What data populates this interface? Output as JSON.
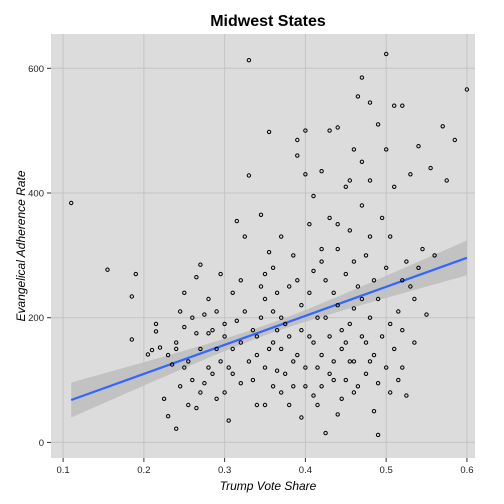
{
  "chart_data": {
    "type": "scatter",
    "title": "Midwest States",
    "xlabel": "Trump Vote Share",
    "ylabel": "Evangelical Adherence Rate",
    "xlim": [
      0.085,
      0.61
    ],
    "ylim": [
      -25,
      655
    ],
    "x_ticks": [
      0.1,
      0.2,
      0.3,
      0.4,
      0.5,
      0.6
    ],
    "x_tick_labels": [
      "0.1",
      "0.2",
      "0.3",
      "0.4",
      "0.5",
      "0.6"
    ],
    "y_ticks": [
      0,
      200,
      400,
      600
    ],
    "y_tick_labels": [
      "0",
      "200",
      "400",
      "600"
    ],
    "grid": true,
    "colors": {
      "panel": "#dcdcdc",
      "grid": "#c4c4c4",
      "fit_line": "#3366ff",
      "band": "#bdbdbd",
      "points": "#000000"
    },
    "fit": {
      "x0": 0.11,
      "y0": 68,
      "x1": 0.6,
      "y1": 296,
      "band_halfwidth_ends": 28,
      "band_halfwidth_mid": 8
    },
    "points": [
      [
        0.11,
        384
      ],
      [
        0.155,
        277
      ],
      [
        0.185,
        234
      ],
      [
        0.185,
        165
      ],
      [
        0.19,
        270
      ],
      [
        0.205,
        141
      ],
      [
        0.21,
        148
      ],
      [
        0.215,
        190
      ],
      [
        0.215,
        178
      ],
      [
        0.22,
        152
      ],
      [
        0.225,
        70
      ],
      [
        0.23,
        42
      ],
      [
        0.235,
        125
      ],
      [
        0.24,
        160
      ],
      [
        0.24,
        22
      ],
      [
        0.245,
        210
      ],
      [
        0.25,
        240
      ],
      [
        0.25,
        185
      ],
      [
        0.255,
        130
      ],
      [
        0.26,
        100
      ],
      [
        0.265,
        265
      ],
      [
        0.265,
        55
      ],
      [
        0.27,
        285
      ],
      [
        0.275,
        205
      ],
      [
        0.28,
        175
      ],
      [
        0.28,
        230
      ],
      [
        0.285,
        110
      ],
      [
        0.29,
        150
      ],
      [
        0.295,
        270
      ],
      [
        0.3,
        190
      ],
      [
        0.305,
        120
      ],
      [
        0.305,
        35
      ],
      [
        0.31,
        240
      ],
      [
        0.315,
        355
      ],
      [
        0.32,
        160
      ],
      [
        0.32,
        95
      ],
      [
        0.325,
        330
      ],
      [
        0.325,
        210
      ],
      [
        0.33,
        613
      ],
      [
        0.33,
        428
      ],
      [
        0.335,
        180
      ],
      [
        0.34,
        140
      ],
      [
        0.34,
        60
      ],
      [
        0.345,
        365
      ],
      [
        0.35,
        270
      ],
      [
        0.35,
        230
      ],
      [
        0.355,
        498
      ],
      [
        0.355,
        305
      ],
      [
        0.36,
        160
      ],
      [
        0.36,
        210
      ],
      [
        0.365,
        115
      ],
      [
        0.37,
        330
      ],
      [
        0.37,
        80
      ],
      [
        0.375,
        190
      ],
      [
        0.38,
        250
      ],
      [
        0.385,
        300
      ],
      [
        0.385,
        130
      ],
      [
        0.39,
        485
      ],
      [
        0.39,
        460
      ],
      [
        0.395,
        220
      ],
      [
        0.395,
        40
      ],
      [
        0.4,
        500
      ],
      [
        0.4,
        430
      ],
      [
        0.405,
        350
      ],
      [
        0.405,
        170
      ],
      [
        0.41,
        395
      ],
      [
        0.41,
        275
      ],
      [
        0.415,
        120
      ],
      [
        0.415,
        60
      ],
      [
        0.42,
        435
      ],
      [
        0.42,
        290
      ],
      [
        0.425,
        200
      ],
      [
        0.425,
        15
      ],
      [
        0.43,
        500
      ],
      [
        0.43,
        360
      ],
      [
        0.435,
        240
      ],
      [
        0.435,
        100
      ],
      [
        0.44,
        505
      ],
      [
        0.44,
        310
      ],
      [
        0.445,
        180
      ],
      [
        0.445,
        70
      ],
      [
        0.45,
        410
      ],
      [
        0.45,
        270
      ],
      [
        0.455,
        340
      ],
      [
        0.455,
        130
      ],
      [
        0.46,
        470
      ],
      [
        0.46,
        215
      ],
      [
        0.465,
        555
      ],
      [
        0.465,
        90
      ],
      [
        0.47,
        585
      ],
      [
        0.47,
        380
      ],
      [
        0.475,
        300
      ],
      [
        0.475,
        160
      ],
      [
        0.48,
        545
      ],
      [
        0.48,
        420
      ],
      [
        0.485,
        260
      ],
      [
        0.485,
        50
      ],
      [
        0.49,
        510
      ],
      [
        0.49,
        12
      ],
      [
        0.495,
        360
      ],
      [
        0.5,
        623
      ],
      [
        0.5,
        470
      ],
      [
        0.505,
        330
      ],
      [
        0.505,
        80
      ],
      [
        0.51,
        540
      ],
      [
        0.515,
        210
      ],
      [
        0.52,
        540
      ],
      [
        0.52,
        120
      ],
      [
        0.525,
        290
      ],
      [
        0.53,
        430
      ],
      [
        0.535,
        230
      ],
      [
        0.54,
        475
      ],
      [
        0.545,
        310
      ],
      [
        0.55,
        205
      ],
      [
        0.555,
        440
      ],
      [
        0.56,
        300
      ],
      [
        0.57,
        507
      ],
      [
        0.575,
        420
      ],
      [
        0.585,
        485
      ],
      [
        0.6,
        566
      ],
      [
        0.23,
        140
      ],
      [
        0.245,
        90
      ],
      [
        0.255,
        60
      ],
      [
        0.26,
        200
      ],
      [
        0.27,
        150
      ],
      [
        0.275,
        95
      ],
      [
        0.285,
        180
      ],
      [
        0.29,
        70
      ],
      [
        0.295,
        130
      ],
      [
        0.3,
        80
      ],
      [
        0.31,
        110
      ],
      [
        0.315,
        195
      ],
      [
        0.32,
        260
      ],
      [
        0.33,
        130
      ],
      [
        0.335,
        100
      ],
      [
        0.345,
        200
      ],
      [
        0.35,
        120
      ],
      [
        0.36,
        90
      ],
      [
        0.365,
        180
      ],
      [
        0.37,
        150
      ],
      [
        0.375,
        110
      ],
      [
        0.38,
        170
      ],
      [
        0.385,
        90
      ],
      [
        0.39,
        140
      ],
      [
        0.395,
        180
      ],
      [
        0.4,
        120
      ],
      [
        0.4,
        90
      ],
      [
        0.405,
        240
      ],
      [
        0.41,
        160
      ],
      [
        0.415,
        200
      ],
      [
        0.42,
        140
      ],
      [
        0.42,
        90
      ],
      [
        0.425,
        260
      ],
      [
        0.43,
        170
      ],
      [
        0.435,
        130
      ],
      [
        0.44,
        220
      ],
      [
        0.445,
        150
      ],
      [
        0.45,
        100
      ],
      [
        0.455,
        190
      ],
      [
        0.46,
        130
      ],
      [
        0.465,
        250
      ],
      [
        0.47,
        170
      ],
      [
        0.475,
        110
      ],
      [
        0.48,
        200
      ],
      [
        0.485,
        140
      ],
      [
        0.49,
        230
      ],
      [
        0.495,
        170
      ],
      [
        0.5,
        120
      ],
      [
        0.505,
        190
      ],
      [
        0.51,
        150
      ],
      [
        0.515,
        100
      ],
      [
        0.52,
        180
      ],
      [
        0.525,
        75
      ],
      [
        0.53,
        250
      ],
      [
        0.535,
        160
      ],
      [
        0.54,
        280
      ],
      [
        0.35,
        60
      ],
      [
        0.355,
        150
      ],
      [
        0.365,
        240
      ],
      [
        0.38,
        60
      ],
      [
        0.39,
        260
      ],
      [
        0.41,
        75
      ],
      [
        0.43,
        110
      ],
      [
        0.44,
        45
      ],
      [
        0.45,
        160
      ],
      [
        0.46,
        80
      ],
      [
        0.47,
        230
      ],
      [
        0.48,
        130
      ],
      [
        0.49,
        95
      ],
      [
        0.31,
        150
      ],
      [
        0.3,
        170
      ],
      [
        0.28,
        120
      ],
      [
        0.265,
        175
      ],
      [
        0.25,
        120
      ],
      [
        0.24,
        150
      ],
      [
        0.27,
        80
      ],
      [
        0.29,
        210
      ],
      [
        0.34,
        170
      ],
      [
        0.37,
        200
      ],
      [
        0.42,
        310
      ],
      [
        0.44,
        350
      ],
      [
        0.46,
        290
      ],
      [
        0.48,
        330
      ],
      [
        0.5,
        280
      ],
      [
        0.52,
        260
      ],
      [
        0.455,
        420
      ],
      [
        0.47,
        450
      ],
      [
        0.51,
        410
      ],
      [
        0.345,
        250
      ],
      [
        0.36,
        280
      ]
    ]
  }
}
